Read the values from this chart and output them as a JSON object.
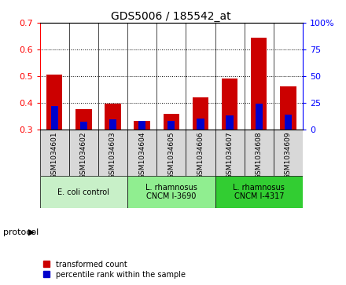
{
  "title": "GDS5006 / 185542_at",
  "samples": [
    "GSM1034601",
    "GSM1034602",
    "GSM1034603",
    "GSM1034604",
    "GSM1034605",
    "GSM1034606",
    "GSM1034607",
    "GSM1034608",
    "GSM1034609"
  ],
  "transformed_count": [
    0.505,
    0.375,
    0.395,
    0.33,
    0.358,
    0.42,
    0.49,
    0.645,
    0.46
  ],
  "percentile_rank": [
    22,
    7,
    9,
    8,
    8,
    10,
    13,
    24,
    14
  ],
  "bar_bottom": 0.3,
  "ylim_left": [
    0.3,
    0.7
  ],
  "ylim_right": [
    0.0,
    100.0
  ],
  "yticks_left": [
    0.3,
    0.4,
    0.5,
    0.6,
    0.7
  ],
  "yticks_right": [
    0,
    25,
    50,
    75,
    100
  ],
  "ytick_labels_right": [
    "0",
    "25",
    "50",
    "75",
    "100%"
  ],
  "groups": [
    {
      "label": "E. coli control",
      "indices": [
        0,
        1,
        2
      ],
      "color": "#c8f0c8"
    },
    {
      "label": "L. rhamnosus\nCNCM I-3690",
      "indices": [
        3,
        4,
        5
      ],
      "color": "#90ee90"
    },
    {
      "label": "L. rhamnosus\nCNCM I-4317",
      "indices": [
        6,
        7,
        8
      ],
      "color": "#32cd32"
    }
  ],
  "bar_color_red": "#cc0000",
  "bar_color_blue": "#0000cc",
  "bar_width": 0.55,
  "blue_bar_width": 0.25,
  "plot_bg_color": "#ffffff",
  "sample_box_color": "#d8d8d8",
  "legend_red": "transformed count",
  "legend_blue": "percentile rank within the sample"
}
